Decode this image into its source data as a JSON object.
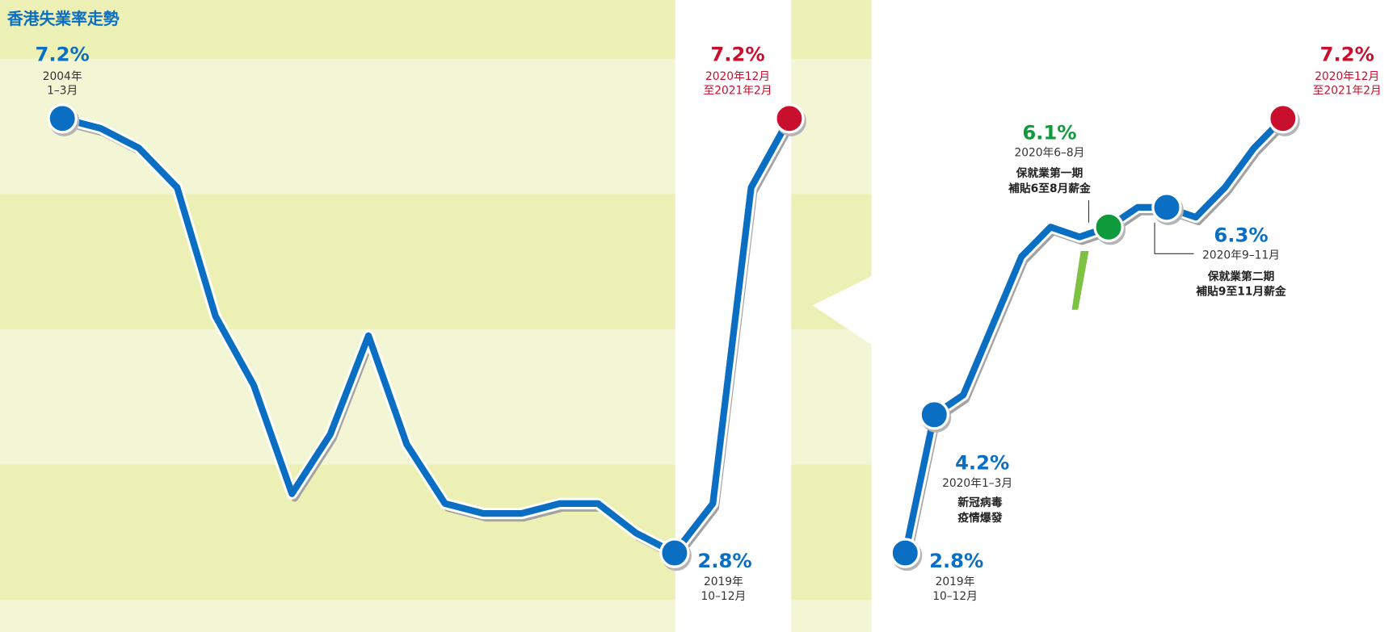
{
  "chart_data": [
    {
      "type": "line",
      "title": "香港失業率走勢",
      "categories": [
        [
          "2004年",
          "1–3月"
        ],
        null,
        null,
        null,
        null,
        null,
        null,
        null,
        null,
        null,
        null,
        null,
        null,
        null,
        null,
        null,
        [
          "2019年",
          "10–12月"
        ],
        null,
        null,
        [
          "2020年12月",
          "至2021年2月"
        ]
      ],
      "series": [
        {
          "color": "#0a6fc2",
          "values": [
            7.2,
            7.1,
            6.9,
            6.5,
            5.2,
            4.5,
            3.4,
            4.0,
            5.0,
            3.9,
            3.3,
            3.2,
            3.2,
            3.3,
            3.3,
            3.0,
            2.8,
            3.3,
            6.5,
            7.2
          ],
          "value_labels": [
            "7.2%",
            null,
            null,
            null,
            null,
            null,
            null,
            null,
            null,
            null,
            null,
            null,
            null,
            null,
            null,
            null,
            "2.8%",
            null,
            null,
            "7.2%"
          ],
          "marker_colors": [
            "#0a6fc2",
            null,
            null,
            null,
            null,
            null,
            null,
            null,
            null,
            null,
            null,
            null,
            null,
            null,
            null,
            null,
            "#0a6fc2",
            null,
            null,
            "#c8102e"
          ]
        }
      ],
      "ylim": [
        2,
        8
      ]
    },
    {
      "type": "line",
      "categories": [
        [
          "2019年",
          "10–12月"
        ],
        [
          "2020年1–3月"
        ],
        null,
        null,
        null,
        null,
        null,
        [
          "2020年6–8月"
        ],
        null,
        [
          "2020年9–11月"
        ],
        null,
        null,
        null,
        [
          "2020年12月",
          "至2021年2月"
        ]
      ],
      "annotations": [
        null,
        [
          "新冠病毒",
          "疫情爆發"
        ],
        null,
        null,
        null,
        null,
        null,
        [
          "保就業第一期",
          "補貼6至8月薪金"
        ],
        null,
        [
          "保就業第二期",
          "補貼9至11月薪金"
        ],
        null,
        null,
        null,
        null
      ],
      "series": [
        {
          "color": "#0a6fc2",
          "values": [
            2.8,
            4.2,
            4.4,
            5.1,
            5.8,
            6.1,
            6.0,
            6.1,
            6.3,
            6.3,
            6.2,
            6.5,
            6.9,
            7.2
          ],
          "value_labels": [
            "2.8%",
            "4.2%",
            null,
            null,
            null,
            null,
            null,
            "6.1%",
            null,
            "6.3%",
            null,
            null,
            null,
            "7.2%"
          ],
          "marker_colors": [
            "#0a6fc2",
            "#0a6fc2",
            null,
            null,
            null,
            null,
            null,
            "#0f9a3c",
            null,
            "#0a6fc2",
            null,
            null,
            null,
            "#c8102e"
          ]
        }
      ],
      "ylim": [
        2,
        8
      ]
    }
  ]
}
